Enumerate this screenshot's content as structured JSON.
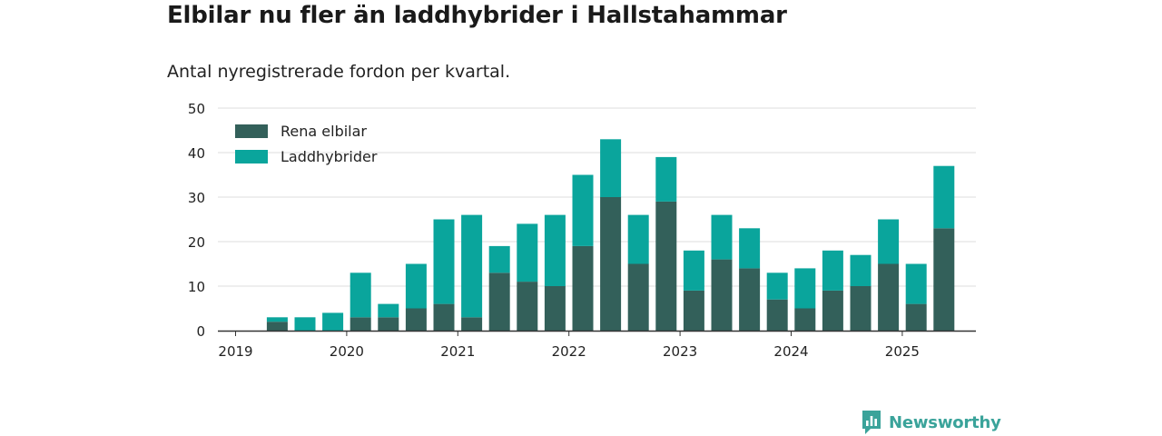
{
  "title": "Elbilar nu fler än laddhybrider i Hallstahammar",
  "subtitle": "Antal nyregistrerade fordon per kvartal.",
  "brand": "Newsworthy",
  "colors": {
    "ev": "#33605a",
    "phev": "#0aa59c",
    "grid": "#dddddd",
    "axis": "#333333",
    "brand": "#3aa39a"
  },
  "chart_data": {
    "type": "bar",
    "stacked": true,
    "categories": [
      "2019 Q1",
      "2019 Q2",
      "2019 Q3",
      "2019 Q4",
      "2020 Q1",
      "2020 Q2",
      "2020 Q3",
      "2020 Q4",
      "2021 Q1",
      "2021 Q2",
      "2021 Q3",
      "2021 Q4",
      "2022 Q1",
      "2022 Q2",
      "2022 Q3",
      "2022 Q4",
      "2023 Q1",
      "2023 Q2",
      "2023 Q3",
      "2023 Q4",
      "2024 Q1",
      "2024 Q2",
      "2024 Q3",
      "2024 Q4",
      "2025 Q1",
      "2025 Q2"
    ],
    "series": [
      {
        "name": "Rena elbilar",
        "values": [
          0,
          2,
          0,
          0,
          3,
          3,
          5,
          6,
          3,
          13,
          11,
          10,
          19,
          30,
          15,
          29,
          9,
          16,
          14,
          7,
          5,
          9,
          10,
          15,
          6,
          23
        ]
      },
      {
        "name": "Laddhybrider",
        "values": [
          0,
          1,
          3,
          4,
          10,
          3,
          10,
          19,
          23,
          6,
          13,
          16,
          16,
          13,
          11,
          10,
          9,
          10,
          9,
          6,
          9,
          9,
          7,
          10,
          9,
          14
        ]
      }
    ],
    "x_tick_labels": [
      "2019",
      "2020",
      "2021",
      "2022",
      "2023",
      "2024",
      "2025"
    ],
    "y_ticks": [
      0,
      10,
      20,
      30,
      40,
      50
    ],
    "ylim": [
      0,
      50
    ],
    "grid": true,
    "legend": "top-left"
  }
}
